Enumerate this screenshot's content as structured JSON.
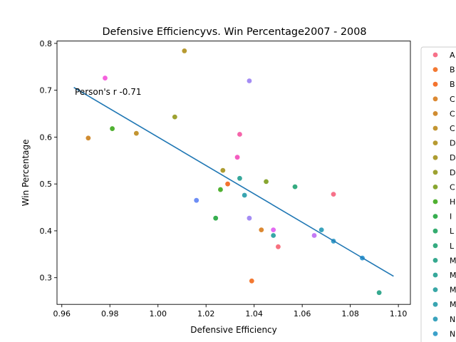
{
  "chart_data": {
    "type": "scatter",
    "title": "Defensive Efficiencyvs. Win Percentage2007 - 2008",
    "xlabel": "Defensive Efficiency",
    "ylabel": "Win Percentage",
    "xlim": [
      0.958,
      1.105
    ],
    "ylim": [
      0.243,
      0.805
    ],
    "xticks": [
      "0.96",
      "0.98",
      "1.00",
      "1.02",
      "1.04",
      "1.06",
      "1.08",
      "1.10"
    ],
    "yticks": [
      "0.3",
      "0.4",
      "0.5",
      "0.6",
      "0.7",
      "0.8"
    ],
    "annotation": "Person's r -0.71",
    "regression_line": {
      "x": [
        0.965,
        1.098
      ],
      "y": [
        0.706,
        0.303
      ],
      "color": "#1f77b4"
    },
    "legend_placement": "right, outside plot (clipped)",
    "legend_entries": [
      {
        "label": "A",
        "color": "#f77189"
      },
      {
        "label": "B",
        "color": "#f37932"
      },
      {
        "label": "B",
        "color": "#f4732e"
      },
      {
        "label": "C",
        "color": "#dc8932"
      },
      {
        "label": "C",
        "color": "#d08c31"
      },
      {
        "label": "C",
        "color": "#c39532"
      },
      {
        "label": "D",
        "color": "#b79a31"
      },
      {
        "label": "D",
        "color": "#ad9c31"
      },
      {
        "label": "D",
        "color": "#9ea231"
      },
      {
        "label": "C",
        "color": "#88a631"
      },
      {
        "label": "H",
        "color": "#50b131"
      },
      {
        "label": "I",
        "color": "#36ae4f"
      },
      {
        "label": "L",
        "color": "#34ac6f"
      },
      {
        "label": "L",
        "color": "#35ab80"
      },
      {
        "label": "M",
        "color": "#36a98f"
      },
      {
        "label": "M",
        "color": "#37a89b"
      },
      {
        "label": "M",
        "color": "#38a7a6"
      },
      {
        "label": "M",
        "color": "#39a5b1"
      },
      {
        "label": "N",
        "color": "#3aa3bd"
      },
      {
        "label": "N",
        "color": "#3ca1ca"
      }
    ],
    "points": [
      {
        "x": 0.971,
        "y": 0.598,
        "color": "#d08c31"
      },
      {
        "x": 0.978,
        "y": 0.726,
        "color": "#f561dd"
      },
      {
        "x": 0.981,
        "y": 0.618,
        "color": "#50b131"
      },
      {
        "x": 0.991,
        "y": 0.608,
        "color": "#c39532"
      },
      {
        "x": 1.007,
        "y": 0.643,
        "color": "#9ea231"
      },
      {
        "x": 1.011,
        "y": 0.784,
        "color": "#b79a31"
      },
      {
        "x": 1.016,
        "y": 0.465,
        "color": "#6e8ef5"
      },
      {
        "x": 1.024,
        "y": 0.427,
        "color": "#36ae4f"
      },
      {
        "x": 1.026,
        "y": 0.488,
        "color": "#50b131"
      },
      {
        "x": 1.027,
        "y": 0.529,
        "color": "#ad9c31"
      },
      {
        "x": 1.029,
        "y": 0.5,
        "color": "#f4732e"
      },
      {
        "x": 1.033,
        "y": 0.557,
        "color": "#f45cc0"
      },
      {
        "x": 1.034,
        "y": 0.606,
        "color": "#f564aa"
      },
      {
        "x": 1.034,
        "y": 0.512,
        "color": "#37a89b"
      },
      {
        "x": 1.036,
        "y": 0.476,
        "color": "#39a5b1"
      },
      {
        "x": 1.038,
        "y": 0.72,
        "color": "#a48cf4"
      },
      {
        "x": 1.038,
        "y": 0.427,
        "color": "#a48cf4"
      },
      {
        "x": 1.039,
        "y": 0.293,
        "color": "#f37932"
      },
      {
        "x": 1.043,
        "y": 0.402,
        "color": "#dc8932"
      },
      {
        "x": 1.045,
        "y": 0.505,
        "color": "#88a631"
      },
      {
        "x": 1.048,
        "y": 0.402,
        "color": "#e36af2"
      },
      {
        "x": 1.048,
        "y": 0.39,
        "color": "#38a7a6"
      },
      {
        "x": 1.05,
        "y": 0.366,
        "color": "#f7717f"
      },
      {
        "x": 1.057,
        "y": 0.494,
        "color": "#35ab80"
      },
      {
        "x": 1.065,
        "y": 0.39,
        "color": "#c47af4"
      },
      {
        "x": 1.068,
        "y": 0.402,
        "color": "#3aa3bd"
      },
      {
        "x": 1.073,
        "y": 0.478,
        "color": "#f77189"
      },
      {
        "x": 1.073,
        "y": 0.378,
        "color": "#3ca1ca"
      },
      {
        "x": 1.085,
        "y": 0.342,
        "color": "#3a9fd6"
      },
      {
        "x": 1.092,
        "y": 0.268,
        "color": "#36a98f"
      }
    ]
  }
}
